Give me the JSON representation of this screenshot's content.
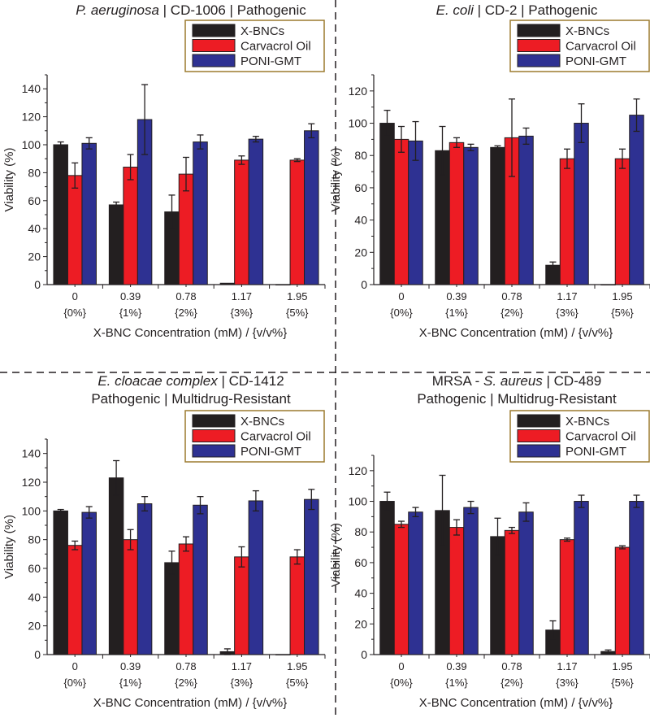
{
  "colors": {
    "X-BNCs": "#231f20",
    "Carvacrol Oil": "#ed1c24",
    "PONI-GMT": "#2e3192",
    "legend_border": "#9c7a2e"
  },
  "chart_data": [
    {
      "type": "bar",
      "title_lines": [
        [
          {
            "text": "P. aeruginosa",
            "italic": true
          },
          {
            "text": " | CD-1006 | Pathogenic",
            "italic": false
          }
        ]
      ],
      "xlabel": "X-BNC Concentration (mM) / {v/v%}",
      "ylabel": "Viability (%)",
      "ylim": [
        0,
        150
      ],
      "yticks": [
        0,
        20,
        40,
        60,
        80,
        100,
        120,
        140
      ],
      "categories": [
        "0",
        "0.39",
        "0.78",
        "1.17",
        "1.95"
      ],
      "subcategories": [
        "{0%}",
        "{1%}",
        "{2%}",
        "{3%}",
        "{5%}"
      ],
      "legend": "top-right",
      "series": [
        {
          "name": "X-BNCs",
          "values": [
            100,
            57,
            52,
            1,
            0
          ],
          "errors": [
            2,
            2,
            12,
            0,
            0
          ]
        },
        {
          "name": "Carvacrol Oil",
          "values": [
            78,
            84,
            79,
            89,
            89
          ],
          "errors": [
            9,
            9,
            12,
            3,
            1
          ]
        },
        {
          "name": "PONI-GMT",
          "values": [
            101,
            118,
            102,
            104,
            110
          ],
          "errors": [
            4,
            25,
            5,
            2,
            5
          ]
        }
      ]
    },
    {
      "type": "bar",
      "title_lines": [
        [
          {
            "text": "E. coli",
            "italic": true
          },
          {
            "text": " | CD-2 | Pathogenic",
            "italic": false
          }
        ]
      ],
      "xlabel": "X-BNC Concentration (mM) / {v/v%}",
      "ylabel": "Viability (%)",
      "ylim": [
        0,
        130
      ],
      "yticks": [
        0,
        20,
        40,
        60,
        80,
        100,
        120
      ],
      "categories": [
        "0",
        "0.39",
        "0.78",
        "1.17",
        "1.95"
      ],
      "subcategories": [
        "{0%}",
        "{1%}",
        "{2%}",
        "{3%}",
        "{5%}"
      ],
      "legend": "top-right",
      "series": [
        {
          "name": "X-BNCs",
          "values": [
            100,
            83,
            85,
            12,
            0
          ],
          "errors": [
            8,
            15,
            1,
            2,
            0
          ]
        },
        {
          "name": "Carvacrol Oil",
          "values": [
            90,
            88,
            91,
            78,
            78
          ],
          "errors": [
            8,
            3,
            24,
            6,
            6
          ]
        },
        {
          "name": "PONI-GMT",
          "values": [
            89,
            85,
            92,
            100,
            105
          ],
          "errors": [
            12,
            2,
            5,
            12,
            10
          ]
        }
      ]
    },
    {
      "type": "bar",
      "title_lines": [
        [
          {
            "text": "E. cloacae complex",
            "italic": true
          },
          {
            "text": " | CD-1412",
            "italic": false
          }
        ],
        [
          {
            "text": "Pathogenic | Multidrug-Resistant",
            "italic": false
          }
        ]
      ],
      "xlabel": "X-BNC Concentration (mM) / {v/v%}",
      "ylabel": "Viability (%)",
      "ylim": [
        0,
        150
      ],
      "yticks": [
        0,
        20,
        40,
        60,
        80,
        100,
        120,
        140
      ],
      "categories": [
        "0",
        "0.39",
        "0.78",
        "1.17",
        "1.95"
      ],
      "subcategories": [
        "{0%}",
        "{1%}",
        "{2%}",
        "{3%}",
        "{5%}"
      ],
      "legend": "top-right",
      "series": [
        {
          "name": "X-BNCs",
          "values": [
            100,
            123,
            64,
            2,
            0
          ],
          "errors": [
            1,
            12,
            8,
            2,
            0
          ]
        },
        {
          "name": "Carvacrol Oil",
          "values": [
            76,
            80,
            77,
            68,
            68
          ],
          "errors": [
            3,
            7,
            5,
            7,
            5
          ]
        },
        {
          "name": "PONI-GMT",
          "values": [
            99,
            105,
            104,
            107,
            108
          ],
          "errors": [
            4,
            5,
            6,
            7,
            7
          ]
        }
      ]
    },
    {
      "type": "bar",
      "title_lines": [
        [
          {
            "text": "MRSA - ",
            "italic": false
          },
          {
            "text": "S. aureus",
            "italic": true
          },
          {
            "text": " | CD-489",
            "italic": false
          }
        ],
        [
          {
            "text": "Pathogenic | Multidrug-Resistant",
            "italic": false
          }
        ]
      ],
      "xlabel": "X-BNC Concentration (mM) / {v/v%}",
      "ylabel": "Viability (%)",
      "ylim": [
        0,
        130
      ],
      "yticks": [
        0,
        20,
        40,
        60,
        80,
        100,
        120
      ],
      "categories": [
        "0",
        "0.39",
        "0.78",
        "1.17",
        "1.95"
      ],
      "subcategories": [
        "{0%}",
        "{1%}",
        "{2%}",
        "{3%}",
        "{5%}"
      ],
      "legend": "top-right",
      "series": [
        {
          "name": "X-BNCs",
          "values": [
            100,
            94,
            77,
            16,
            2
          ],
          "errors": [
            6,
            23,
            12,
            6,
            1
          ]
        },
        {
          "name": "Carvacrol Oil",
          "values": [
            85,
            83,
            81,
            75,
            70
          ],
          "errors": [
            2,
            5,
            2,
            1,
            1
          ]
        },
        {
          "name": "PONI-GMT",
          "values": [
            93,
            96,
            93,
            100,
            100
          ],
          "errors": [
            3,
            4,
            6,
            4,
            4
          ]
        }
      ]
    }
  ]
}
